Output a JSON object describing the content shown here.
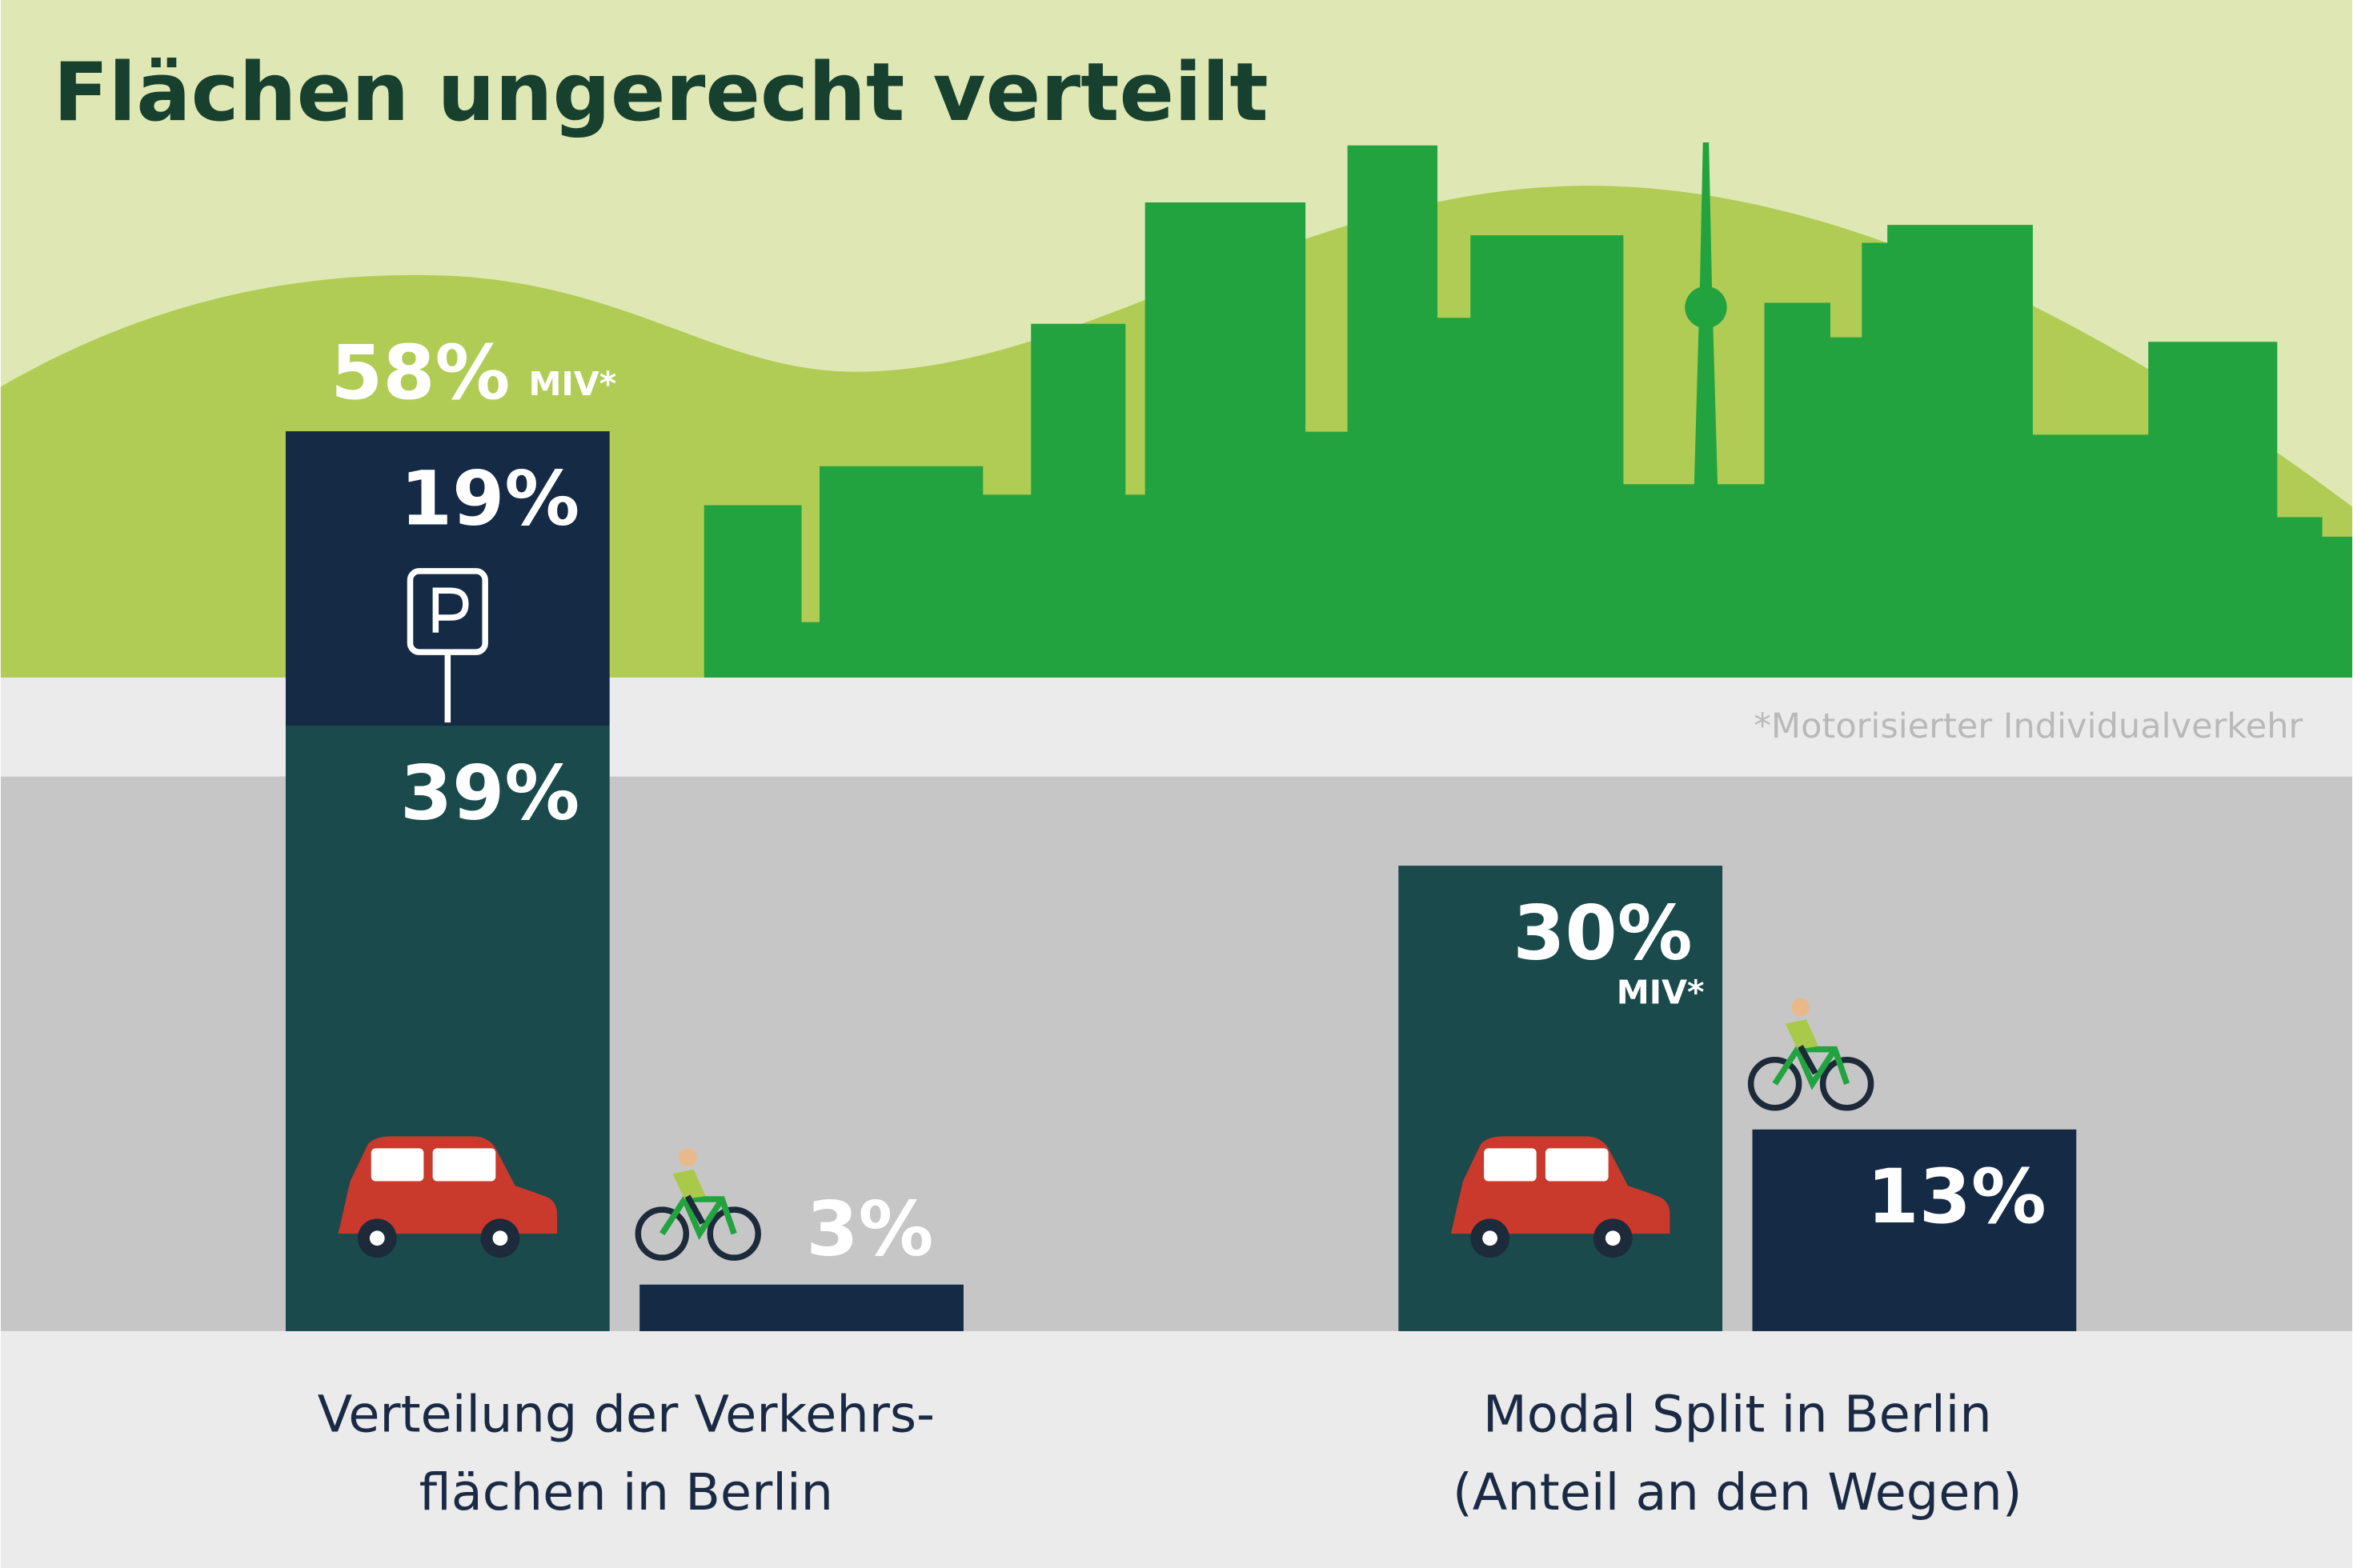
{
  "title": "Flächen ungerecht verteilt",
  "footnote": "*Motorisierter Individualverkehr",
  "chart_data": [
    {
      "type": "bar",
      "title": [
        "Verteilung der Verkehrs-",
        "flächen in Berlin"
      ],
      "bars": [
        {
          "segments": [
            {
              "value": 39,
              "label": "39%",
              "color": "#1a4a4c"
            },
            {
              "value": 19,
              "label": "19%",
              "color": "#142a45"
            }
          ],
          "total": {
            "value": 58,
            "label": "58%",
            "note": "MIV*"
          }
        },
        {
          "segments": [
            {
              "value": 3,
              "label": "3%",
              "color": "#142a45"
            }
          ]
        }
      ]
    },
    {
      "type": "bar",
      "title": [
        "Modal Split in Berlin",
        "(Anteil an den Wegen)"
      ],
      "bars": [
        {
          "segments": [
            {
              "value": 30,
              "label": "30%",
              "color": "#1a4a4c"
            }
          ],
          "note": "MIV*"
        },
        {
          "segments": [
            {
              "value": 13,
              "label": "13%",
              "color": "#142a45"
            }
          ]
        }
      ]
    }
  ]
}
